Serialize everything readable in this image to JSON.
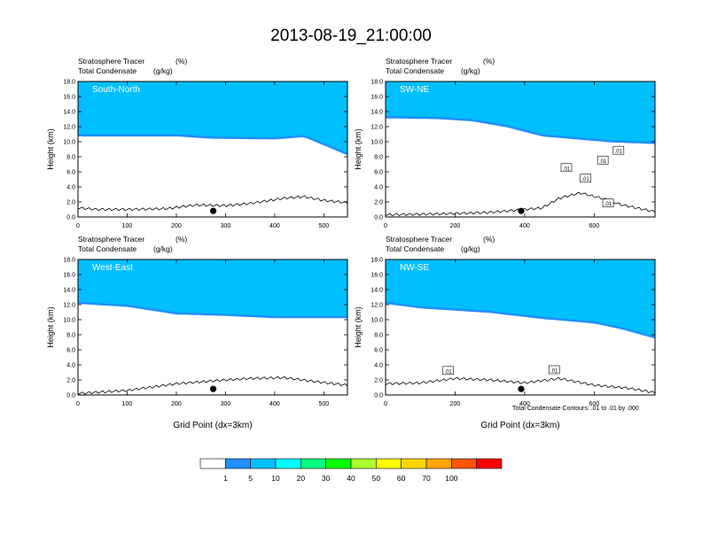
{
  "figure": {
    "title": "2013-08-19_21:00:00",
    "footnote": "Total Condensate Contours: .01 to .01 by .000"
  },
  "colorbar": {
    "colors": [
      "#ffffff",
      "#1e90ff",
      "#00bfff",
      "#00ffff",
      "#00ff7f",
      "#00ff00",
      "#adff2f",
      "#ffff00",
      "#ffd700",
      "#ffa500",
      "#ff5500",
      "#ff0000"
    ],
    "labels": [
      "1",
      "5",
      "10",
      "20",
      "30",
      "40",
      "50",
      "60",
      "70",
      "100"
    ]
  },
  "chart_data": [
    {
      "type": "contour",
      "panel_label": "South-North",
      "subtitle_left": [
        "Stratosphere Tracer",
        "Total Condensate"
      ],
      "subtitle_units": [
        "(%)",
        "(g/kg)"
      ],
      "ylabel": "Height (km)",
      "xlabel": "",
      "xlim": [
        0,
        548
      ],
      "ylim": [
        0,
        18
      ],
      "xticks": [
        "0",
        "100",
        "200",
        "300",
        "400",
        "500"
      ],
      "yticks": [
        "0.0",
        "2.0",
        "4.0",
        "6.0",
        "8.0",
        "10.0",
        "12.0",
        "14.0",
        "16.0",
        "18.0"
      ],
      "tropopause_base_km": [
        [
          0,
          11.0
        ],
        [
          100,
          11.0
        ],
        [
          200,
          11.0
        ],
        [
          270,
          10.7
        ],
        [
          400,
          10.6
        ],
        [
          460,
          10.9
        ],
        [
          548,
          8.5
        ]
      ],
      "terrain_km": [
        [
          0,
          1.2
        ],
        [
          40,
          1.0
        ],
        [
          100,
          1.0
        ],
        [
          180,
          1.1
        ],
        [
          240,
          1.6
        ],
        [
          300,
          1.5
        ],
        [
          350,
          1.8
        ],
        [
          420,
          2.5
        ],
        [
          460,
          2.7
        ],
        [
          500,
          2.2
        ],
        [
          548,
          1.9
        ]
      ],
      "marker_x": 275,
      "contour_labels": []
    },
    {
      "type": "contour",
      "panel_label": "SW-NE",
      "subtitle_left": [
        "Stratosphere Tracer",
        "Total Condensate"
      ],
      "subtitle_units": [
        "(%)",
        "(g/kg)"
      ],
      "ylabel": "Height (km)",
      "xlabel": "",
      "xlim": [
        0,
        775
      ],
      "ylim": [
        0,
        18
      ],
      "xticks": [
        "0",
        "200",
        "400",
        "600"
      ],
      "yticks": [
        "0.0",
        "2.0",
        "4.0",
        "6.0",
        "8.0",
        "10.0",
        "12.0",
        "14.0",
        "16.0",
        "18.0"
      ],
      "tropopause_base_km": [
        [
          0,
          13.4
        ],
        [
          150,
          13.3
        ],
        [
          250,
          13.0
        ],
        [
          350,
          12.2
        ],
        [
          450,
          11.0
        ],
        [
          550,
          10.6
        ],
        [
          650,
          10.2
        ],
        [
          775,
          10.0
        ]
      ],
      "terrain_km": [
        [
          0,
          0.3
        ],
        [
          150,
          0.4
        ],
        [
          300,
          0.6
        ],
        [
          450,
          1.2
        ],
        [
          500,
          2.5
        ],
        [
          560,
          3.2
        ],
        [
          620,
          2.5
        ],
        [
          680,
          1.6
        ],
        [
          775,
          0.7
        ]
      ],
      "marker_x": 390,
      "contour_labels": [
        {
          "x": 520,
          "y": 6.5,
          "text": ".01"
        },
        {
          "x": 625,
          "y": 7.5,
          "text": ".01"
        },
        {
          "x": 575,
          "y": 5.1,
          "text": ".01"
        },
        {
          "x": 670,
          "y": 8.8,
          "text": ".01"
        },
        {
          "x": 640,
          "y": 1.8,
          "text": ".01"
        }
      ]
    },
    {
      "type": "contour",
      "panel_label": "West-East",
      "subtitle_left": [
        "Stratosphere Tracer",
        "Total Condensate"
      ],
      "subtitle_units": [
        "(%)",
        "(g/kg)"
      ],
      "ylabel": "Height (km)",
      "xlabel": "Grid Point (dx=3km)",
      "xlim": [
        0,
        548
      ],
      "ylim": [
        0,
        18
      ],
      "xticks": [
        "0",
        "100",
        "200",
        "300",
        "400",
        "500"
      ],
      "yticks": [
        "0.0",
        "2.0",
        "4.0",
        "6.0",
        "8.0",
        "10.0",
        "12.0",
        "14.0",
        "16.0",
        "18.0"
      ],
      "tropopause_base_km": [
        [
          0,
          12.4
        ],
        [
          100,
          12.0
        ],
        [
          200,
          11.0
        ],
        [
          300,
          10.8
        ],
        [
          400,
          10.5
        ],
        [
          548,
          10.5
        ]
      ],
      "terrain_km": [
        [
          0,
          0.2
        ],
        [
          100,
          0.6
        ],
        [
          200,
          1.5
        ],
        [
          280,
          1.9
        ],
        [
          350,
          2.2
        ],
        [
          420,
          2.3
        ],
        [
          480,
          1.8
        ],
        [
          548,
          1.3
        ]
      ],
      "marker_x": 275,
      "contour_labels": []
    },
    {
      "type": "contour",
      "panel_label": "NW-SE",
      "subtitle_left": [
        "Stratosphere Tracer",
        "Total Condensate"
      ],
      "subtitle_units": [
        "(%)",
        "(g/kg)"
      ],
      "ylabel": "Height (km)",
      "xlabel": "Grid Point (dx=3km)",
      "xlim": [
        0,
        775
      ],
      "ylim": [
        0,
        18
      ],
      "xticks": [
        "0",
        "200",
        "400",
        "600"
      ],
      "yticks": [
        "0.0",
        "2.0",
        "4.0",
        "6.0",
        "8.0",
        "10.0",
        "12.0",
        "14.0",
        "16.0",
        "18.0"
      ],
      "tropopause_base_km": [
        [
          0,
          12.4
        ],
        [
          100,
          11.8
        ],
        [
          300,
          11.2
        ],
        [
          450,
          10.4
        ],
        [
          600,
          9.8
        ],
        [
          680,
          9.0
        ],
        [
          775,
          7.8
        ]
      ],
      "terrain_km": [
        [
          0,
          1.5
        ],
        [
          100,
          1.6
        ],
        [
          200,
          2.2
        ],
        [
          300,
          2.0
        ],
        [
          400,
          1.6
        ],
        [
          500,
          2.2
        ],
        [
          600,
          1.3
        ],
        [
          700,
          0.9
        ],
        [
          775,
          0.3
        ]
      ],
      "marker_x": 390,
      "contour_labels": [
        {
          "x": 180,
          "y": 3.2,
          "text": ".01"
        },
        {
          "x": 485,
          "y": 3.3,
          "text": ".01"
        }
      ]
    }
  ]
}
